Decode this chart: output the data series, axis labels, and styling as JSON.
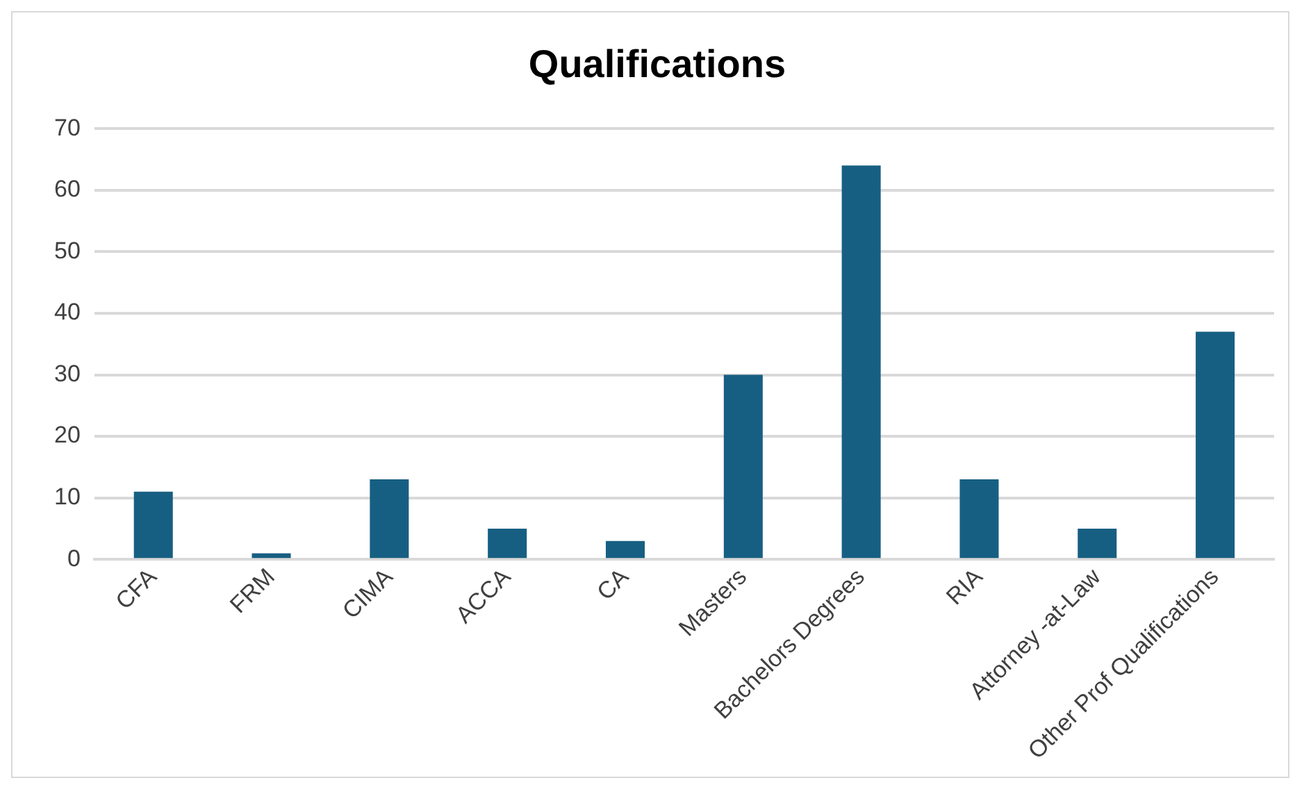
{
  "chart_data": {
    "type": "bar",
    "title": "Qualifications",
    "categories": [
      "CFA",
      "FRM",
      "CIMA",
      "ACCA",
      "CA",
      "Masters",
      "Bachelors Degrees",
      "RIA",
      "Attorney -at-Law",
      "Other Prof Qualifications"
    ],
    "values": [
      11,
      1,
      13,
      5,
      3,
      30,
      64,
      13,
      5,
      37
    ],
    "color": "#175f82",
    "ylim": [
      0,
      70
    ],
    "yticks": [
      0,
      10,
      20,
      30,
      40,
      50,
      60,
      70
    ],
    "grid": "y",
    "legend": false
  }
}
